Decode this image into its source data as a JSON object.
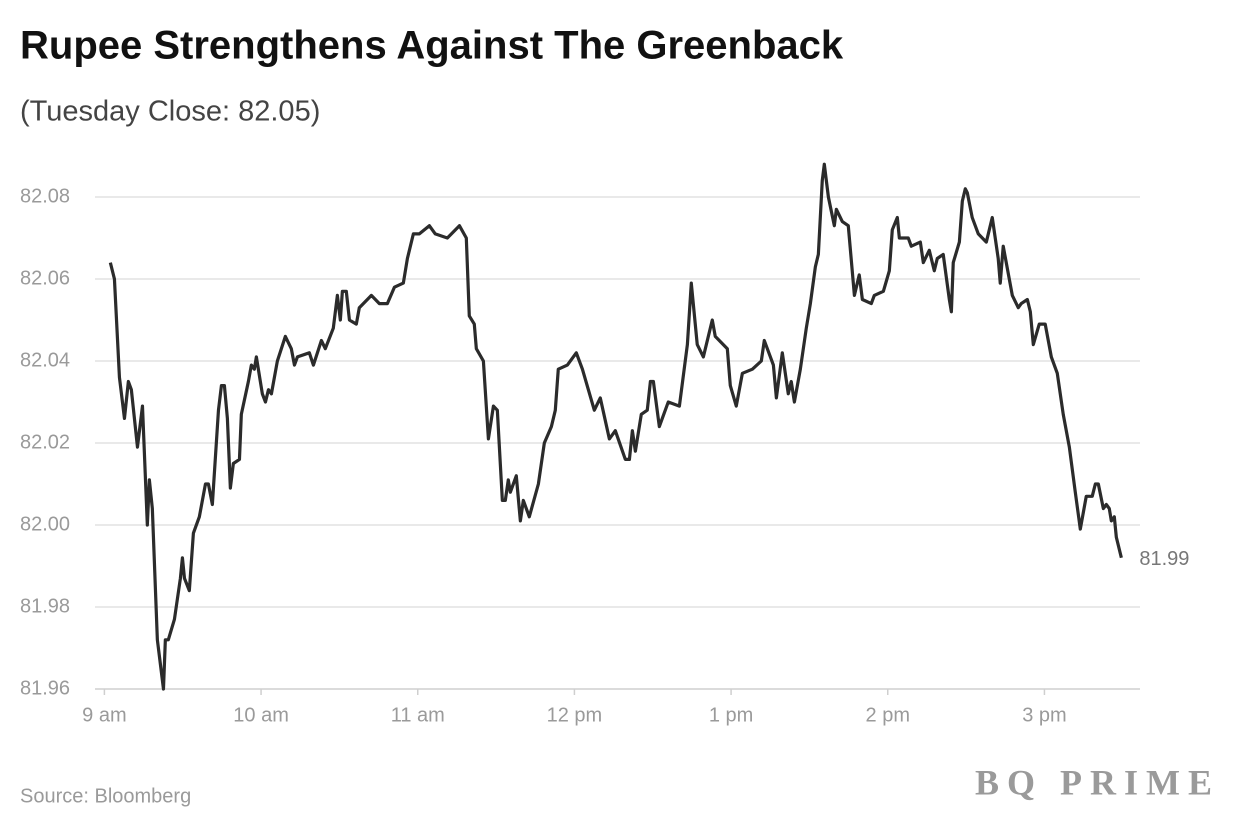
{
  "chart_data": {
    "type": "line",
    "title": "Rupee Strengthens Against The Greenback",
    "subtitle": "(Tuesday Close: 82.05)",
    "source": "Source: Bloomberg",
    "logo": "BQ PRIME",
    "end_label": "81.99",
    "x": [
      9.038,
      9.064,
      9.096,
      9.128,
      9.153,
      9.172,
      9.211,
      9.243,
      9.274,
      9.287,
      9.306,
      9.338,
      9.377,
      9.389,
      9.408,
      9.447,
      9.485,
      9.498,
      9.511,
      9.542,
      9.568,
      9.606,
      9.645,
      9.664,
      9.689,
      9.728,
      9.747,
      9.766,
      9.785,
      9.804,
      9.823,
      9.862,
      9.874,
      9.919,
      9.938,
      9.957,
      9.97,
      10.008,
      10.028,
      10.047,
      10.066,
      10.104,
      10.155,
      10.193,
      10.213,
      10.232,
      10.308,
      10.334,
      10.385,
      10.41,
      10.461,
      10.487,
      10.506,
      10.519,
      10.544,
      10.564,
      10.608,
      10.627,
      10.704,
      10.755,
      10.806,
      10.851,
      10.908,
      10.934,
      10.972,
      11.01,
      11.074,
      11.112,
      11.189,
      11.266,
      11.31,
      11.329,
      11.361,
      11.374,
      11.419,
      11.451,
      11.483,
      11.508,
      11.54,
      11.559,
      11.578,
      11.591,
      11.629,
      11.655,
      11.674,
      11.712,
      11.77,
      11.808,
      11.853,
      11.878,
      11.897,
      11.955,
      12.012,
      12.051,
      12.089,
      12.127,
      12.165,
      12.223,
      12.261,
      12.325,
      12.351,
      12.37,
      12.389,
      12.427,
      12.465,
      12.485,
      12.504,
      12.542,
      12.599,
      12.67,
      12.721,
      12.746,
      12.784,
      12.823,
      12.88,
      12.899,
      12.976,
      12.995,
      13.033,
      13.072,
      13.136,
      13.193,
      13.212,
      13.27,
      13.289,
      13.327,
      13.365,
      13.384,
      13.404,
      13.442,
      13.48,
      13.506,
      13.538,
      13.557,
      13.582,
      13.595,
      13.621,
      13.659,
      13.672,
      13.71,
      13.748,
      13.787,
      13.818,
      13.838,
      13.895,
      13.914,
      13.972,
      14.01,
      14.029,
      14.061,
      14.074,
      14.131,
      14.15,
      14.208,
      14.227,
      14.265,
      14.297,
      14.316,
      14.354,
      14.393,
      14.406,
      14.418,
      14.457,
      14.476,
      14.495,
      14.508,
      14.539,
      14.578,
      14.629,
      14.667,
      14.705,
      14.718,
      14.737,
      14.795,
      14.833,
      14.852,
      14.891,
      14.91,
      14.929,
      14.967,
      15.005,
      15.044,
      15.082,
      15.12,
      15.159,
      15.197,
      15.229,
      15.267,
      15.286,
      15.305,
      15.325,
      15.344,
      15.376,
      15.395,
      15.414,
      15.427,
      15.446,
      15.459,
      15.491
    ],
    "series": [
      {
        "color": "#2b2b2b",
        "values": [
          82.064,
          82.06,
          82.036,
          82.026,
          82.035,
          82.033,
          82.019,
          82.029,
          82.0,
          82.011,
          82.004,
          81.972,
          81.96,
          81.972,
          81.972,
          81.977,
          81.987,
          81.992,
          81.987,
          81.984,
          81.998,
          82.002,
          82.01,
          82.01,
          82.005,
          82.028,
          82.034,
          82.034,
          82.026,
          82.009,
          82.015,
          82.016,
          82.027,
          82.035,
          82.039,
          82.038,
          82.041,
          82.032,
          82.03,
          82.033,
          82.032,
          82.04,
          82.046,
          82.043,
          82.039,
          82.041,
          82.042,
          82.039,
          82.045,
          82.043,
          82.048,
          82.056,
          82.05,
          82.057,
          82.057,
          82.05,
          82.049,
          82.053,
          82.056,
          82.054,
          82.054,
          82.058,
          82.059,
          82.065,
          82.071,
          82.071,
          82.073,
          82.071,
          82.07,
          82.073,
          82.07,
          82.051,
          82.049,
          82.043,
          82.04,
          82.021,
          82.029,
          82.028,
          82.006,
          82.006,
          82.011,
          82.008,
          82.012,
          82.001,
          82.006,
          82.002,
          82.01,
          82.02,
          82.024,
          82.028,
          82.038,
          82.039,
          82.042,
          82.038,
          82.033,
          82.028,
          82.031,
          82.021,
          82.023,
          82.016,
          82.016,
          82.023,
          82.018,
          82.027,
          82.028,
          82.035,
          82.035,
          82.024,
          82.03,
          82.029,
          82.044,
          82.059,
          82.044,
          82.041,
          82.05,
          82.046,
          82.043,
          82.034,
          82.029,
          82.037,
          82.038,
          82.04,
          82.045,
          82.039,
          82.031,
          82.042,
          82.032,
          82.035,
          82.03,
          82.038,
          82.048,
          82.054,
          82.063,
          82.066,
          82.084,
          82.088,
          82.08,
          82.073,
          82.077,
          82.074,
          82.073,
          82.056,
          82.061,
          82.055,
          82.054,
          82.056,
          82.057,
          82.062,
          82.072,
          82.075,
          82.07,
          82.07,
          82.068,
          82.069,
          82.064,
          82.067,
          82.062,
          82.065,
          82.066,
          82.055,
          82.052,
          82.064,
          82.069,
          82.079,
          82.082,
          82.081,
          82.075,
          82.071,
          82.069,
          82.075,
          82.065,
          82.059,
          82.068,
          82.056,
          82.053,
          82.054,
          82.055,
          82.052,
          82.044,
          82.049,
          82.049,
          82.041,
          82.037,
          82.027,
          82.019,
          82.008,
          81.999,
          82.007,
          82.007,
          82.007,
          82.01,
          82.01,
          82.004,
          82.005,
          82.004,
          82.001,
          82.002,
          81.997,
          81.992
        ]
      }
    ],
    "xlim": [
      8.94,
      15.61
    ],
    "xticks": [
      {
        "value": 9,
        "label": "9 am"
      },
      {
        "value": 10,
        "label": "10 am"
      },
      {
        "value": 11,
        "label": "11 am"
      },
      {
        "value": 12,
        "label": "12 pm"
      },
      {
        "value": 13,
        "label": "1 pm"
      },
      {
        "value": 14,
        "label": "2 pm"
      },
      {
        "value": 15,
        "label": "3 pm"
      }
    ],
    "ylim": [
      81.96,
      82.09
    ],
    "yticks": [
      81.96,
      81.98,
      {
        "value": 82,
        "label": "82.00"
      },
      82.02,
      82.04,
      82.06,
      82.08
    ],
    "grid": true
  }
}
